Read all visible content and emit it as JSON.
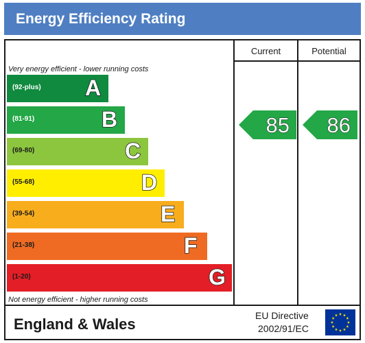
{
  "header": {
    "title": "Energy Efficiency Rating",
    "bg_color": "#4f7fc2"
  },
  "columns": {
    "current": "Current",
    "potential": "Potential"
  },
  "captions": {
    "top": "Very energy efficient - lower running costs",
    "bottom": "Not energy efficient - higher running costs"
  },
  "bands": [
    {
      "range": "(92-plus)",
      "letter": "A",
      "color": "#0f8a3f",
      "range_color": "#ffffff"
    },
    {
      "range": "(81-91)",
      "letter": "B",
      "color": "#23a747",
      "range_color": "#ffffff"
    },
    {
      "range": "(69-80)",
      "letter": "C",
      "color": "#8cc63e",
      "range_color": "#1a1a1a"
    },
    {
      "range": "(55-68)",
      "letter": "D",
      "color": "#ffee00",
      "range_color": "#1a1a1a"
    },
    {
      "range": "(39-54)",
      "letter": "E",
      "color": "#f8ad1d",
      "range_color": "#1a1a1a"
    },
    {
      "range": "(21-38)",
      "letter": "F",
      "color": "#ef6b23",
      "range_color": "#1a1a1a"
    },
    {
      "range": "(1-20)",
      "letter": "G",
      "color": "#e41e26",
      "range_color": "#1a1a1a"
    }
  ],
  "ratings": {
    "current": {
      "value": "85",
      "band": "B",
      "color": "#23a747"
    },
    "potential": {
      "value": "86",
      "band": "B",
      "color": "#23a747"
    }
  },
  "footer": {
    "region": "England & Wales",
    "directive_line1": "EU Directive",
    "directive_line2": "2002/91/EC",
    "flag_color": "#003399",
    "star_color": "#ffdd00"
  }
}
